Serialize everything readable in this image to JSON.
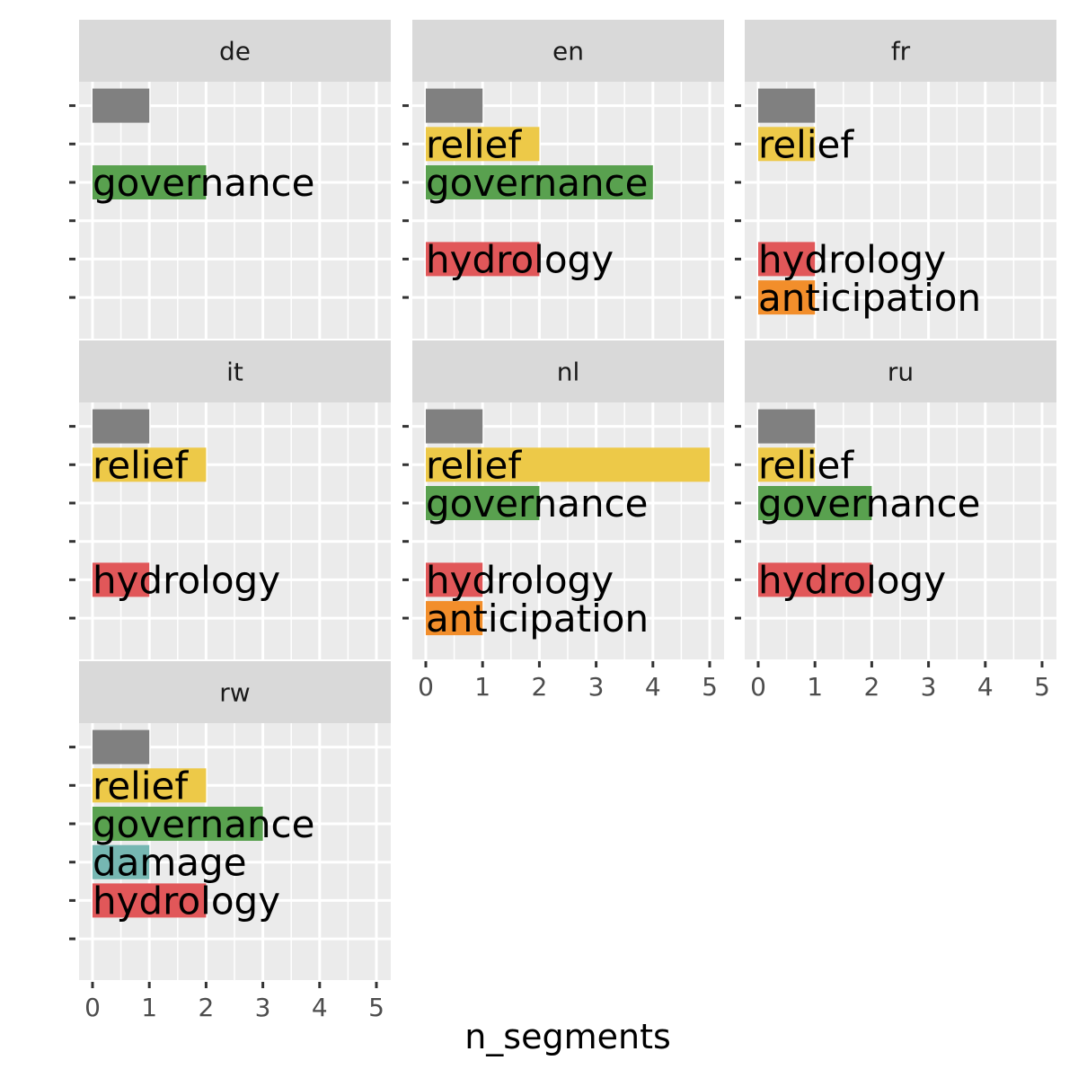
{
  "chart_data": {
    "type": "bar",
    "orientation": "horizontal",
    "xlabel": "n_segments",
    "xlim": [
      0,
      5
    ],
    "x_ticks": [
      "0",
      "1",
      "2",
      "3",
      "4",
      "5"
    ],
    "categories": [
      "",
      "relief",
      "governance",
      "damage",
      "hydrology",
      "anticipation"
    ],
    "colors": {
      "": "#808080",
      "relief": "#EDC948",
      "governance": "#59A14F",
      "damage": "#76B7B2",
      "hydrology": "#E15759",
      "anticipation": "#F28E2B"
    },
    "grid": true,
    "facets": [
      {
        "name": "de",
        "values": [
          1,
          null,
          2,
          null,
          null,
          null
        ]
      },
      {
        "name": "en",
        "values": [
          1,
          2,
          4,
          null,
          2,
          null
        ]
      },
      {
        "name": "fr",
        "values": [
          1,
          1,
          null,
          null,
          1,
          1
        ]
      },
      {
        "name": "it",
        "values": [
          1,
          2,
          null,
          null,
          1,
          null
        ]
      },
      {
        "name": "nl",
        "values": [
          1,
          5,
          2,
          null,
          1,
          1
        ]
      },
      {
        "name": "ru",
        "values": [
          1,
          1,
          2,
          null,
          2,
          null
        ]
      },
      {
        "name": "rw",
        "values": [
          1,
          2,
          3,
          1,
          2,
          null
        ]
      }
    ]
  }
}
